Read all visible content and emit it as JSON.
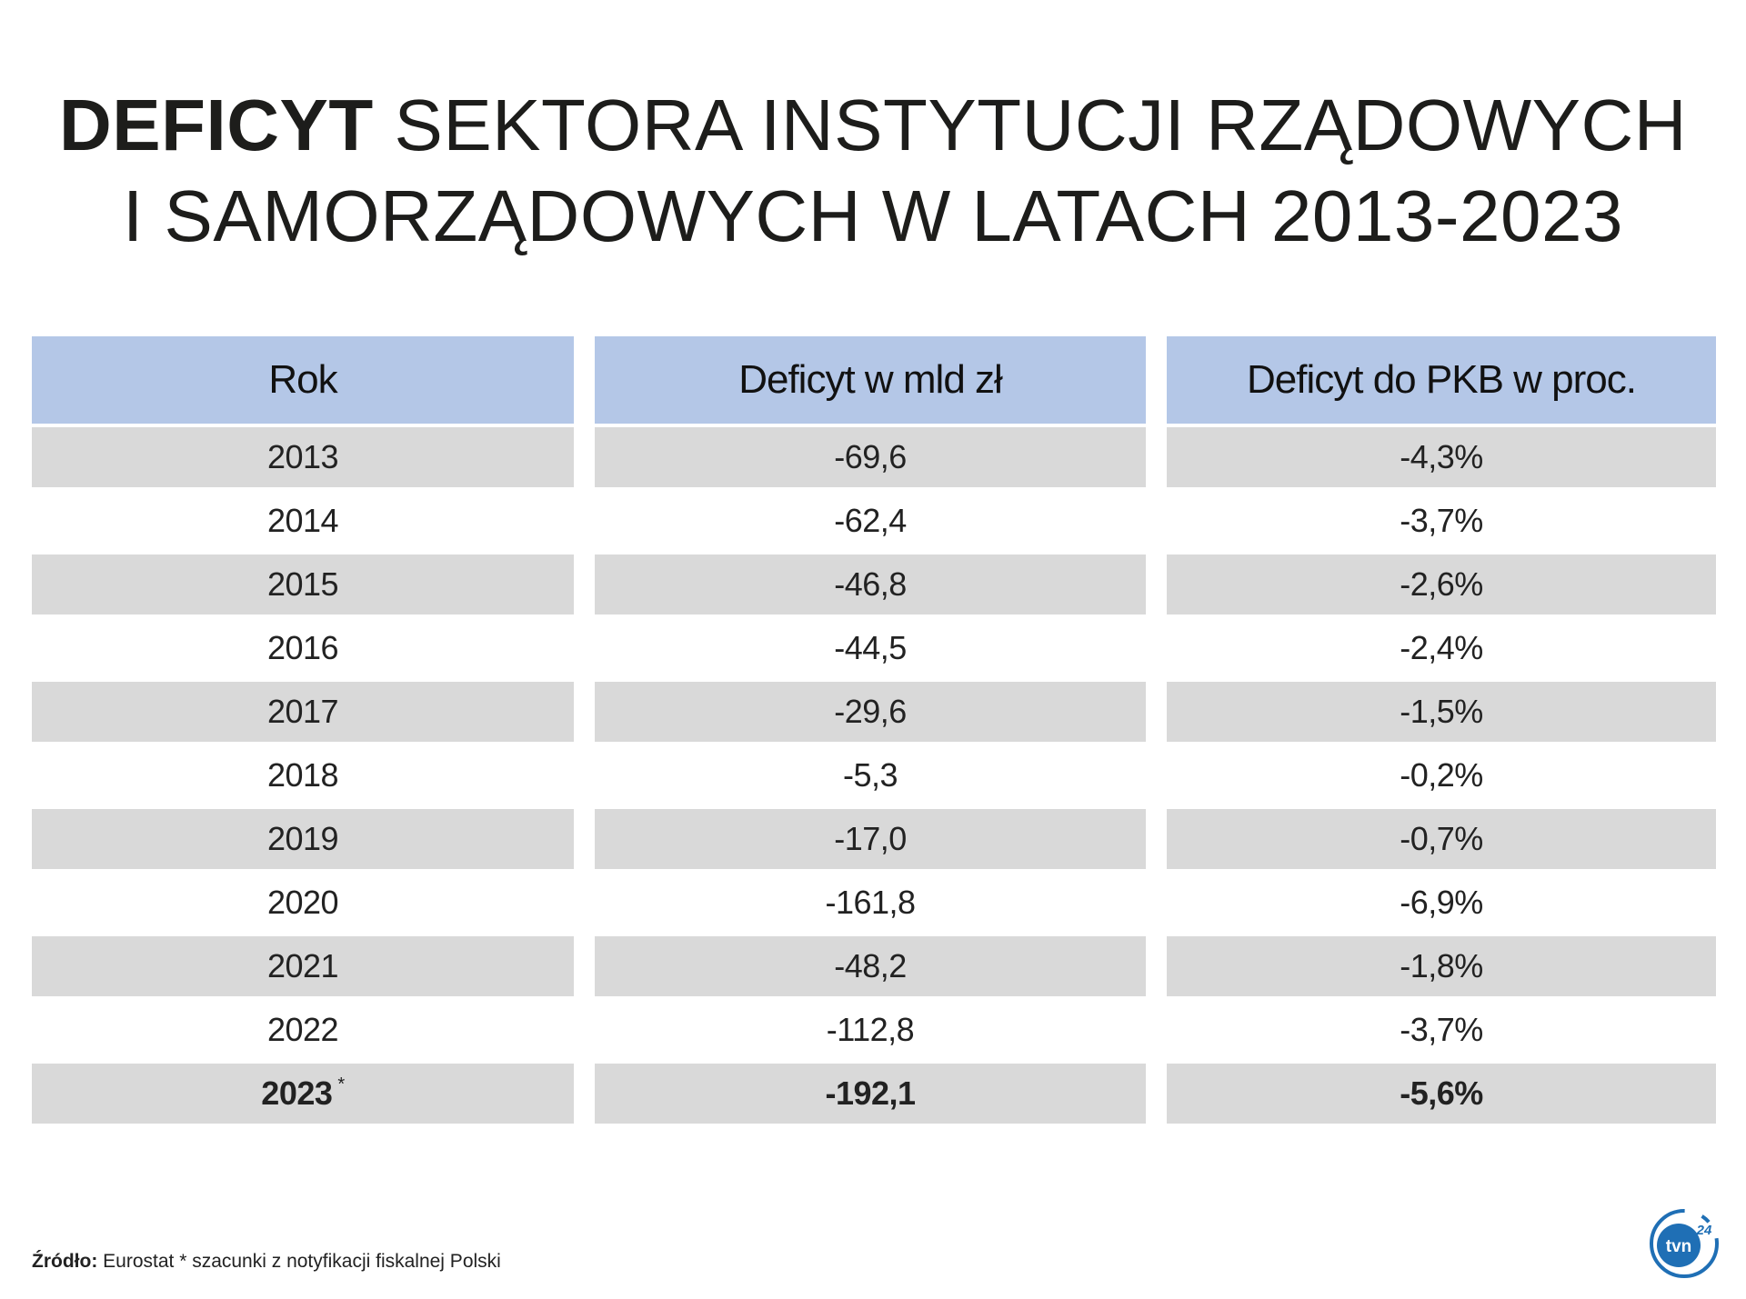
{
  "title": {
    "bold": "DEFICYT",
    "line1_rest": " SEKTORA INSTYTUCJI RZĄDOWYCH",
    "line2": "I SAMORZĄDOWYCH W LATACH 2013-2023"
  },
  "chart_data": {
    "type": "table",
    "columns": [
      "Rok",
      "Deficyt w mld zł",
      "Deficyt do PKB w proc."
    ],
    "rows": [
      [
        "2013",
        "-69,6",
        "-4,3%"
      ],
      [
        "2014",
        "-62,4",
        "-3,7%"
      ],
      [
        "2015",
        "-46,8",
        "-2,6%"
      ],
      [
        "2016",
        "-44,5",
        "-2,4%"
      ],
      [
        "2017",
        "-29,6",
        "-1,5%"
      ],
      [
        "2018",
        "-5,3",
        "-0,2%"
      ],
      [
        "2019",
        "-17,0",
        "-0,7%"
      ],
      [
        "2020",
        "-161,8",
        "-6,9%"
      ],
      [
        "2021",
        "-48,2",
        "-1,8%"
      ],
      [
        "2022",
        "-112,8",
        "-3,7%"
      ],
      [
        "2023",
        "-192,1",
        "-5,6%"
      ]
    ],
    "last_row_marker": "*"
  },
  "footer": {
    "source_label": "Źródło:",
    "source_value": " Eurostat  * szacunki z notyfikacji fiskalnej Polski"
  },
  "logo": {
    "text": "tvn24",
    "icon": "tvn24-logo-icon",
    "color": "#1f6fb5"
  },
  "colors": {
    "header_bg": "#b4c7e7",
    "stripe_bg": "#d9d9d9"
  }
}
